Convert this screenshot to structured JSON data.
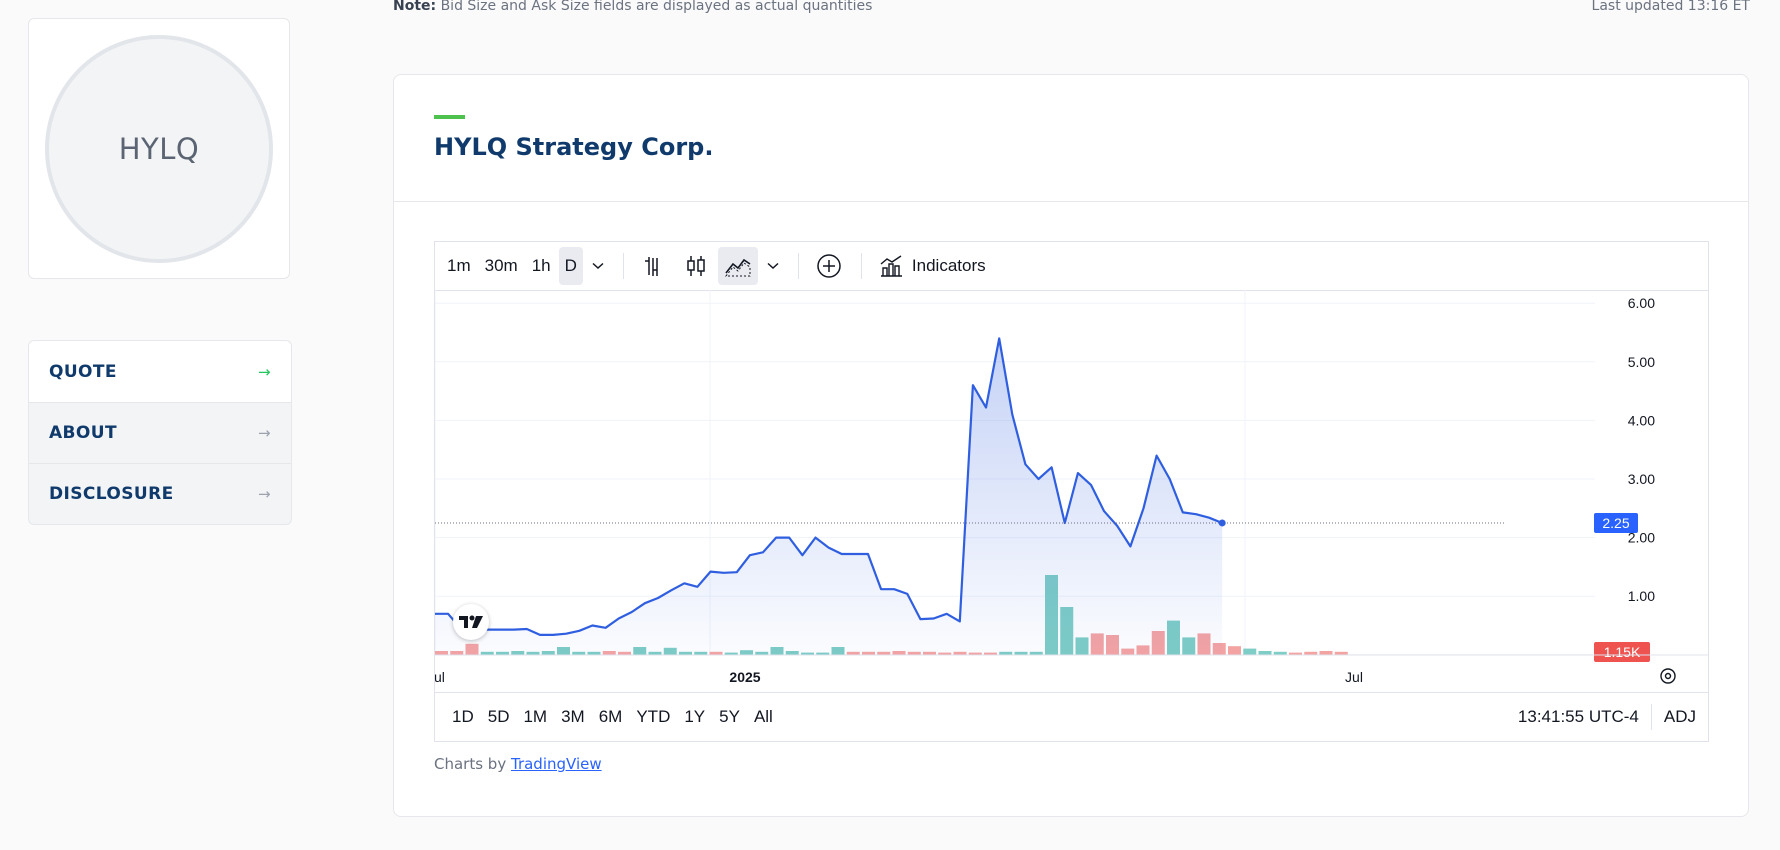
{
  "top_note": {
    "label": "Note:",
    "text": " Bid Size and Ask Size fields are displayed as actual quantities",
    "updated": "Last updated 13:16 ET"
  },
  "logo": {
    "ticker": "HYLQ"
  },
  "side_nav": {
    "items": [
      {
        "label": "QUOTE",
        "active": true
      },
      {
        "label": "ABOUT",
        "active": false
      },
      {
        "label": "DISCLOSURE",
        "active": false
      }
    ],
    "arrow": "→"
  },
  "company": {
    "name": "HYLQ Strategy Corp."
  },
  "toolbar": {
    "intervals": [
      "1m",
      "30m",
      "1h",
      "D"
    ],
    "active_interval": "D",
    "indicators_label": "Indicators"
  },
  "bottom_bar": {
    "ranges": [
      "1D",
      "5D",
      "1M",
      "3M",
      "6M",
      "YTD",
      "1Y",
      "5Y",
      "All"
    ],
    "time": "13:41:55 UTC-4",
    "adj": "ADJ"
  },
  "credits": {
    "prefix": "Charts by ",
    "link": "TradingView"
  },
  "colors": {
    "line": "#2f5fe0",
    "volume_up": "#7ecdc6",
    "volume_down": "#f4a3a3",
    "price_badge": "#2962ff",
    "volume_badge": "#ef5350"
  },
  "chart_data": {
    "type": "area",
    "x_tick_labels": [
      "Jul",
      "2025",
      "Jul"
    ],
    "y_tick_labels": [
      "1.00",
      "2.00",
      "3.00",
      "4.00",
      "5.00",
      "6.00"
    ],
    "ylim": [
      0,
      6
    ],
    "last_price_label": "2.25",
    "last_volume_label": "1.15K",
    "grid": true,
    "price": [
      0.7,
      0.7,
      0.44,
      0.44,
      0.43,
      0.43,
      0.43,
      0.44,
      0.34,
      0.34,
      0.36,
      0.41,
      0.5,
      0.46,
      0.62,
      0.73,
      0.88,
      0.97,
      1.1,
      1.22,
      1.16,
      1.42,
      1.4,
      1.41,
      1.7,
      1.75,
      2.0,
      2.0,
      1.7,
      2.0,
      1.83,
      1.72,
      1.72,
      1.72,
      1.12,
      1.12,
      1.04,
      0.61,
      0.62,
      0.7,
      0.57,
      4.6,
      4.22,
      5.4,
      4.1,
      3.25,
      3.0,
      3.2,
      2.25,
      3.1,
      2.9,
      2.45,
      2.2,
      1.85,
      2.5,
      3.4,
      3.0,
      2.43,
      2.4,
      2.34,
      2.25
    ],
    "volume": [
      {
        "v": 5,
        "dir": "down"
      },
      {
        "v": 5,
        "dir": "down"
      },
      {
        "v": 14,
        "dir": "down"
      },
      {
        "v": 4,
        "dir": "up"
      },
      {
        "v": 4,
        "dir": "up"
      },
      {
        "v": 5,
        "dir": "up"
      },
      {
        "v": 4,
        "dir": "up"
      },
      {
        "v": 5,
        "dir": "up"
      },
      {
        "v": 10,
        "dir": "up"
      },
      {
        "v": 4,
        "dir": "up"
      },
      {
        "v": 4,
        "dir": "up"
      },
      {
        "v": 5,
        "dir": "down"
      },
      {
        "v": 4,
        "dir": "down"
      },
      {
        "v": 10,
        "dir": "up"
      },
      {
        "v": 4,
        "dir": "up"
      },
      {
        "v": 9,
        "dir": "up"
      },
      {
        "v": 4,
        "dir": "up"
      },
      {
        "v": 4,
        "dir": "up"
      },
      {
        "v": 4,
        "dir": "down"
      },
      {
        "v": 3,
        "dir": "up"
      },
      {
        "v": 6,
        "dir": "up"
      },
      {
        "v": 4,
        "dir": "up"
      },
      {
        "v": 10,
        "dir": "up"
      },
      {
        "v": 5,
        "dir": "up"
      },
      {
        "v": 3,
        "dir": "up"
      },
      {
        "v": 3,
        "dir": "up"
      },
      {
        "v": 10,
        "dir": "up"
      },
      {
        "v": 4,
        "dir": "down"
      },
      {
        "v": 4,
        "dir": "down"
      },
      {
        "v": 4,
        "dir": "down"
      },
      {
        "v": 5,
        "dir": "down"
      },
      {
        "v": 4,
        "dir": "down"
      },
      {
        "v": 4,
        "dir": "down"
      },
      {
        "v": 3,
        "dir": "down"
      },
      {
        "v": 4,
        "dir": "down"
      },
      {
        "v": 3,
        "dir": "down"
      },
      {
        "v": 3,
        "dir": "down"
      },
      {
        "v": 4,
        "dir": "up"
      },
      {
        "v": 4,
        "dir": "up"
      },
      {
        "v": 4,
        "dir": "up"
      },
      {
        "v": 100,
        "dir": "up"
      },
      {
        "v": 60,
        "dir": "up"
      },
      {
        "v": 22,
        "dir": "up"
      },
      {
        "v": 27,
        "dir": "down"
      },
      {
        "v": 25,
        "dir": "down"
      },
      {
        "v": 8,
        "dir": "down"
      },
      {
        "v": 12,
        "dir": "down"
      },
      {
        "v": 30,
        "dir": "down"
      },
      {
        "v": 43,
        "dir": "up"
      },
      {
        "v": 22,
        "dir": "up"
      },
      {
        "v": 27,
        "dir": "down"
      },
      {
        "v": 15,
        "dir": "down"
      },
      {
        "v": 11,
        "dir": "down"
      },
      {
        "v": 8,
        "dir": "up"
      },
      {
        "v": 5,
        "dir": "up"
      },
      {
        "v": 4,
        "dir": "up"
      },
      {
        "v": 3,
        "dir": "down"
      },
      {
        "v": 4,
        "dir": "down"
      },
      {
        "v": 5,
        "dir": "down"
      },
      {
        "v": 4,
        "dir": "down"
      }
    ]
  }
}
